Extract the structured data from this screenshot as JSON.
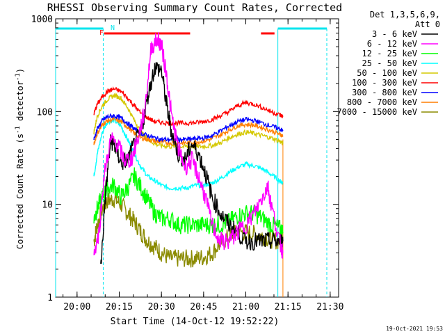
{
  "chart_data": {
    "type": "line",
    "title": "RHESSI Observing Summary Count Rates, Corrected",
    "xlabel": "Start Time (14-Oct-12 19:52:22)",
    "ylabel_main": "Corrected Count Rate (s",
    "ylabel_sup1": "-1",
    "ylabel_mid": " detector",
    "ylabel_sup2": "-1",
    "ylabel_end": ")",
    "x_ticks": [
      "20:00",
      "20:15",
      "20:30",
      "20:45",
      "21:00",
      "21:15",
      "21:30"
    ],
    "x_tick_hours": [
      20.0,
      20.25,
      20.5,
      20.75,
      21.0,
      21.25,
      21.5
    ],
    "xlim_hours": [
      19.873,
      21.55
    ],
    "y_scale": "log",
    "ylim": [
      1,
      1000
    ],
    "y_ticks": [
      "1",
      "10",
      "100",
      "1000"
    ],
    "legend_header": [
      "Det 1,3,5,6,9,",
      "Att 0"
    ],
    "legend_position": "right",
    "footer_date": "19-Oct-2021 19:53",
    "flags": {
      "F_label": "F",
      "N_label": "N",
      "F_color": "#ff0000",
      "N_color": "#00e5ee",
      "F_bars_hours": [
        [
          20.16,
          20.67
        ],
        [
          21.09,
          21.17
        ]
      ],
      "N_bars_hours": [
        [
          19.873,
          20.155
        ],
        [
          21.19,
          21.48
        ]
      ],
      "night_lines_hours": [
        19.873,
        20.155,
        21.19,
        21.48
      ]
    },
    "valid_interval_hours": [
      20.1,
      21.22
    ],
    "series": [
      {
        "name": "3 - 6 keV",
        "color": "#000000",
        "x": [
          20.14,
          20.17,
          20.2,
          20.23,
          20.26,
          20.3,
          20.34,
          20.38,
          20.42,
          20.46,
          20.5,
          20.53,
          20.56,
          20.6,
          20.64,
          20.68,
          20.72,
          20.76,
          20.8,
          20.85,
          20.9,
          20.95,
          21.0,
          21.05,
          21.1,
          21.15,
          21.2,
          21.22
        ],
        "y": [
          2,
          14,
          50,
          40,
          28,
          30,
          45,
          60,
          150,
          300,
          280,
          120,
          60,
          35,
          30,
          45,
          35,
          22,
          12,
          8,
          6,
          5,
          4,
          4,
          4,
          4,
          4,
          4
        ]
      },
      {
        "name": "6 - 12 keV",
        "color": "#ff00ff",
        "x": [
          20.1,
          20.13,
          20.16,
          20.2,
          20.24,
          20.28,
          20.32,
          20.36,
          20.4,
          20.44,
          20.48,
          20.5,
          20.53,
          20.56,
          20.6,
          20.64,
          20.68,
          20.72,
          20.76,
          20.8,
          20.85,
          20.9,
          20.95,
          21.0,
          21.05,
          21.1,
          21.13,
          21.15,
          21.2,
          21.22
        ],
        "y": [
          3,
          5,
          20,
          50,
          45,
          30,
          30,
          50,
          100,
          500,
          600,
          520,
          250,
          90,
          40,
          25,
          30,
          20,
          12,
          6,
          4,
          4,
          5,
          6,
          8,
          12,
          16,
          10,
          4,
          3
        ]
      },
      {
        "name": "12 - 25 keV",
        "color": "#00ff00",
        "x": [
          20.1,
          20.12,
          20.15,
          20.18,
          20.22,
          20.26,
          20.3,
          20.34,
          20.38,
          20.42,
          20.46,
          20.5,
          20.55,
          20.6,
          20.65,
          20.7,
          20.75,
          20.8,
          20.85,
          20.9,
          20.95,
          21.0,
          21.05,
          21.1,
          21.15,
          21.2,
          21.22
        ],
        "y": [
          7,
          9,
          12,
          15,
          16,
          12,
          15,
          20,
          15,
          11,
          8,
          7,
          7,
          6,
          6,
          6,
          6,
          6,
          6,
          6.5,
          7.5,
          8,
          8,
          7,
          6,
          5.5,
          5
        ]
      },
      {
        "name": "25 - 50 keV",
        "color": "#00ffff",
        "x": [
          20.1,
          20.12,
          20.15,
          20.18,
          20.22,
          20.26,
          20.3,
          20.34,
          20.38,
          20.42,
          20.46,
          20.5,
          20.55,
          20.6,
          20.65,
          20.7,
          20.75,
          20.8,
          20.85,
          20.9,
          20.95,
          21.0,
          21.05,
          21.1,
          21.15,
          21.2,
          21.22
        ],
        "y": [
          20,
          35,
          60,
          78,
          80,
          70,
          50,
          35,
          25,
          20,
          18,
          16,
          15,
          15,
          15,
          16,
          16,
          17,
          19,
          22,
          25,
          27,
          26,
          24,
          21,
          18,
          17
        ]
      },
      {
        "name": "50 - 100 keV",
        "color": "#d4c800",
        "x": [
          20.1,
          20.12,
          20.15,
          20.18,
          20.22,
          20.26,
          20.3,
          20.34,
          20.38,
          20.42,
          20.46,
          20.5,
          20.55,
          20.6,
          20.65,
          20.7,
          20.75,
          20.8,
          20.85,
          20.9,
          20.95,
          21.0,
          21.05,
          21.1,
          21.15,
          21.2,
          21.22
        ],
        "y": [
          60,
          90,
          115,
          135,
          150,
          140,
          110,
          80,
          60,
          50,
          45,
          43,
          42,
          42,
          42,
          42,
          42,
          43,
          46,
          52,
          57,
          60,
          58,
          55,
          52,
          48,
          45
        ]
      },
      {
        "name": "100 - 300 keV",
        "color": "#ff0000",
        "x": [
          20.1,
          20.12,
          20.15,
          20.18,
          20.22,
          20.26,
          20.3,
          20.34,
          20.38,
          20.42,
          20.46,
          20.5,
          20.55,
          20.6,
          20.65,
          20.7,
          20.75,
          20.8,
          20.85,
          20.9,
          20.95,
          21.0,
          21.05,
          21.1,
          21.15,
          21.2,
          21.22
        ],
        "y": [
          95,
          120,
          145,
          165,
          175,
          165,
          140,
          115,
          95,
          85,
          78,
          76,
          75,
          75,
          75,
          76,
          78,
          82,
          90,
          100,
          115,
          125,
          120,
          110,
          100,
          92,
          88
        ]
      },
      {
        "name": "300 - 800 keV",
        "color": "#0000ff",
        "x": [
          20.1,
          20.12,
          20.15,
          20.18,
          20.22,
          20.26,
          20.3,
          20.34,
          20.38,
          20.42,
          20.46,
          20.5,
          20.55,
          20.6,
          20.65,
          20.7,
          20.75,
          20.8,
          20.85,
          20.9,
          20.95,
          21.0,
          21.05,
          21.1,
          21.15,
          21.2,
          21.22
        ],
        "y": [
          50,
          65,
          80,
          88,
          90,
          85,
          75,
          65,
          58,
          55,
          52,
          50,
          50,
          50,
          50,
          51,
          52,
          55,
          62,
          70,
          78,
          82,
          80,
          75,
          70,
          65,
          62
        ]
      },
      {
        "name": "800 - 7000 keV",
        "color": "#ff7f00",
        "x": [
          20.1,
          20.12,
          20.15,
          20.18,
          20.22,
          20.26,
          20.3,
          20.34,
          20.38,
          20.42,
          20.46,
          20.5,
          20.55,
          20.6,
          20.65,
          20.7,
          20.75,
          20.8,
          20.85,
          20.9,
          20.95,
          21.0,
          21.05,
          21.1,
          21.15,
          21.2,
          21.22
        ],
        "y": [
          45,
          58,
          72,
          80,
          82,
          78,
          68,
          58,
          52,
          50,
          48,
          47,
          46,
          46,
          46,
          47,
          48,
          51,
          56,
          63,
          70,
          73,
          71,
          67,
          62,
          57,
          55
        ]
      },
      {
        "name": "7000 - 15000 keV",
        "color": "#8b8b00",
        "x": [
          20.1,
          20.12,
          20.15,
          20.18,
          20.22,
          20.26,
          20.3,
          20.34,
          20.38,
          20.42,
          20.46,
          20.5,
          20.55,
          20.6,
          20.65,
          20.7,
          20.75,
          20.8,
          20.85,
          20.9,
          20.95,
          21.0,
          21.05,
          21.1,
          21.15,
          21.2,
          21.22
        ],
        "y": [
          4,
          6,
          9,
          11,
          11.5,
          10,
          8,
          6.5,
          5,
          4,
          3.5,
          3,
          2.6,
          2.6,
          2.6,
          2.6,
          2.7,
          3,
          3.8,
          4.5,
          5,
          5,
          4.8,
          4.5,
          4.2,
          4,
          4
        ]
      }
    ]
  }
}
